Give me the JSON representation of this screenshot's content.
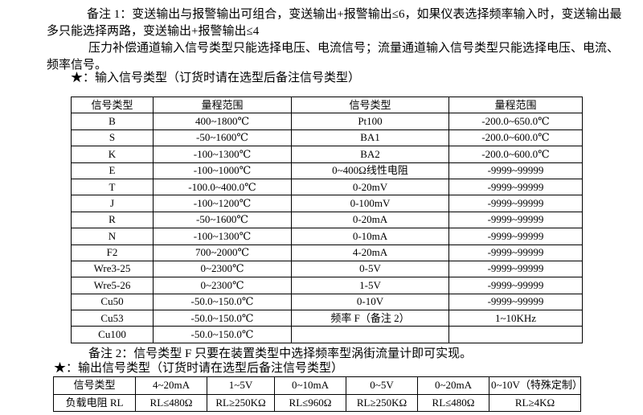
{
  "document": {
    "background": "#ffffff",
    "text_color": "#000000",
    "border_color": "#000000"
  },
  "notes": {
    "note1_line1": "备注 1：变送输出与报警输出可组合，变送输出+报警输出≤6，如果仪表选择频率输入时，变送输出最",
    "note1_line2": "多只能选择两路，变送输出+报警输出≤4",
    "note1_line3": "压力补偿通道输入信号类型只能选择电压、电流信号；流量通道输入信号类型只能选择电压、电流、",
    "note1_line4": "频率信号。",
    "input_heading": "★：输入信号类型（订货时请在选型后备注信号类型）",
    "note2": "备注 2：信号类型 F 只要在装置类型中选择频率型涡街流量计即可实现。",
    "output_heading": "★：输出信号类型（订货时请在选型后备注信号类型）"
  },
  "input_table": {
    "headers": [
      "信号类型",
      "量程范围",
      "信号类型",
      "量程范围"
    ],
    "rows": [
      [
        "B",
        "400~1800℃",
        "Pt100",
        "-200.0~650.0℃"
      ],
      [
        "S",
        "-50~1600℃",
        "BA1",
        "-200.0~600.0℃"
      ],
      [
        "K",
        "-100~1300℃",
        "BA2",
        "-200.0~600.0℃"
      ],
      [
        "E",
        "-100~1000℃",
        "0~400Ω线性电阻",
        "-9999~99999"
      ],
      [
        "T",
        "-100.0~400.0℃",
        "0-20mV",
        "-9999~99999"
      ],
      [
        "J",
        "-100~1200℃",
        "0-100mV",
        "-9999~99999"
      ],
      [
        "R",
        "-50~1600℃",
        "0-20mA",
        "-9999~99999"
      ],
      [
        "N",
        "-100~1300℃",
        "0-10mA",
        "-9999~99999"
      ],
      [
        "F2",
        "700~2000℃",
        "4-20mA",
        "-9999~99999"
      ],
      [
        "Wre3-25",
        "0~2300℃",
        "0-5V",
        "-9999~99999"
      ],
      [
        "Wre5-26",
        "0~2300℃",
        "1-5V",
        "-9999~99999"
      ],
      [
        "Cu50",
        "-50.0~150.0℃",
        "0-10V",
        "-9999~99999"
      ],
      [
        "Cu53",
        "-50.0~150.0℃",
        "频率 F（备注 2）",
        "1~10KHz"
      ],
      [
        "Cu100",
        "-50.0~150.0℃",
        "",
        ""
      ]
    ]
  },
  "output_table": {
    "headers": [
      "信号类型",
      "4~20mA",
      "1~5V",
      "0~10mA",
      "0~5V",
      "0~20mA",
      "0~10V（特殊定制）"
    ],
    "rows": [
      [
        "负载电阻 RL",
        "RL≤480Ω",
        "RL≥250KΩ",
        "RL≤960Ω",
        "RL≥250KΩ",
        "RL≤480Ω",
        "RL≥4KΩ"
      ]
    ]
  }
}
